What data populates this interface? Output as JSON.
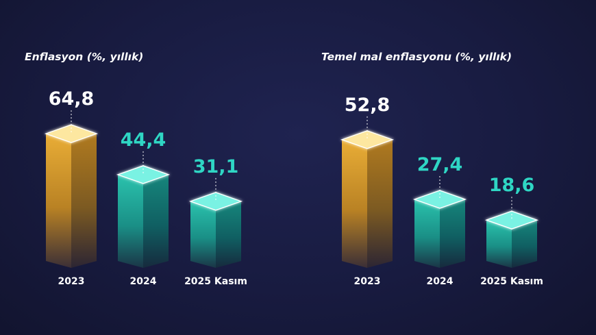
{
  "colors": {
    "gold": "#e9b13c",
    "teal": "#29c7b2",
    "white_value": "#ffffff",
    "teal_value": "#2fd6c4",
    "background": "#181b40"
  },
  "chart_data": [
    {
      "type": "bar",
      "title": "Enflasyon (%, yıllık)",
      "categories": [
        "2023",
        "2024",
        "2025 Kasım"
      ],
      "values": [
        64.8,
        44.4,
        31.1
      ],
      "value_labels": [
        "64,8",
        "44,4",
        "31,1"
      ],
      "bar_colors": [
        "gold",
        "teal",
        "teal"
      ],
      "label_colors": [
        "white_value",
        "teal_value",
        "teal_value"
      ]
    },
    {
      "type": "bar",
      "title": "Temel mal enflasyonu (%, yıllık)",
      "categories": [
        "2023",
        "2024",
        "2025 Kasım"
      ],
      "values": [
        52.8,
        27.4,
        18.6
      ],
      "value_labels": [
        "52,8",
        "27,4",
        "18,6"
      ],
      "bar_colors": [
        "gold",
        "teal",
        "teal"
      ],
      "label_colors": [
        "white_value",
        "teal_value",
        "teal_value"
      ]
    }
  ]
}
